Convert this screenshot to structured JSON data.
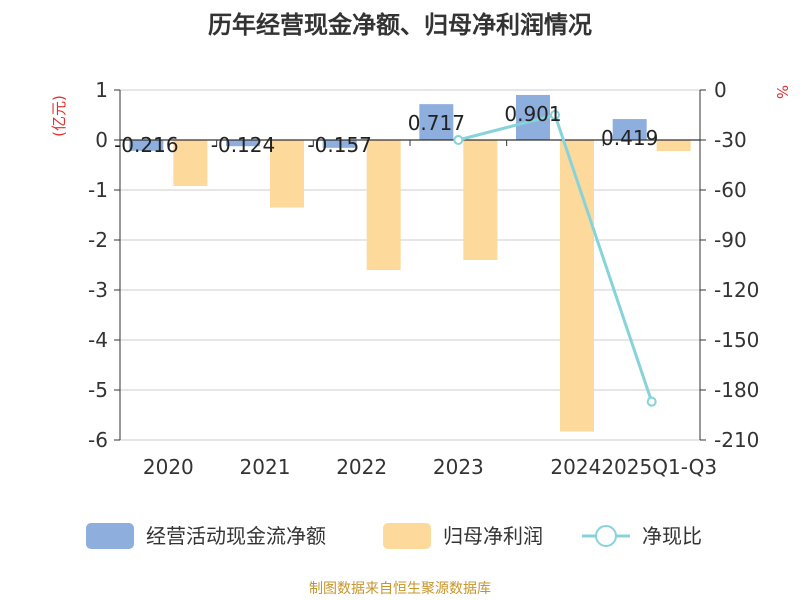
{
  "chart_data": {
    "type": "bar",
    "title": "历年经营现金净额、归母净利润情况",
    "left_axis_label": "(亿元)",
    "right_axis_label": "%",
    "categories": [
      "2020",
      "2021",
      "2022",
      "2023",
      "2024",
      "2025Q1-Q3"
    ],
    "left_ylim": [
      -6,
      1
    ],
    "left_ticks": [
      1,
      0,
      -1,
      -2,
      -3,
      -4,
      -5,
      -6
    ],
    "right_ylim": [
      -210,
      0
    ],
    "right_ticks": [
      0,
      -30,
      -60,
      -90,
      -120,
      -150,
      -180,
      -210
    ],
    "series": [
      {
        "name": "经营活动现金流净额",
        "type": "bar",
        "axis": "left",
        "color": "#8eaedd",
        "values": [
          -0.216,
          -0.124,
          -0.157,
          0.717,
          0.901,
          0.419
        ],
        "labels": [
          "-0.216",
          "-0.124",
          "-0.157",
          "0.717",
          "0.901",
          "0.419"
        ]
      },
      {
        "name": "归母净利润",
        "type": "bar",
        "axis": "left",
        "color": "#fdd99b",
        "values": [
          -0.92,
          -1.35,
          -2.6,
          -2.4,
          -5.83,
          -0.22
        ]
      },
      {
        "name": "净现比",
        "type": "line",
        "axis": "right",
        "color": "#87d3db",
        "values": [
          null,
          null,
          null,
          -30,
          -15,
          -187
        ]
      }
    ],
    "source": "制图数据来自恒生聚源数据库"
  }
}
